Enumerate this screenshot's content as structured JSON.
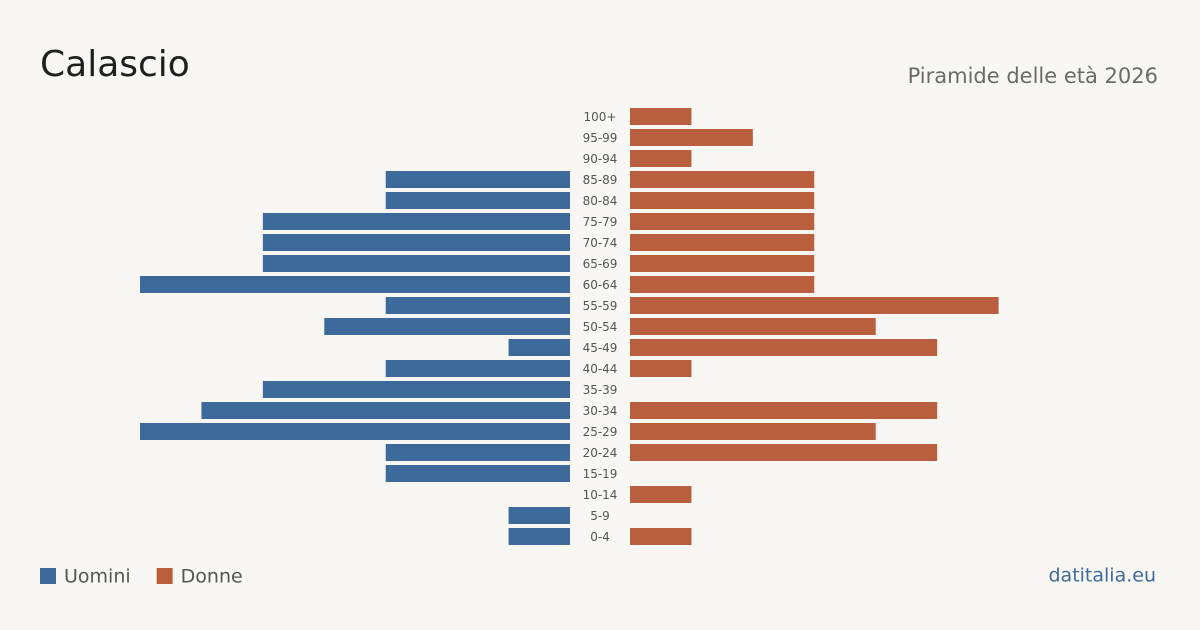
{
  "chart_data": {
    "type": "pyramid",
    "title": "Calascio",
    "subtitle": "Piramide delle età 2026",
    "source": "datitalia.eu",
    "categories": [
      "100+",
      "95-99",
      "90-94",
      "85-89",
      "80-84",
      "75-79",
      "70-74",
      "65-69",
      "60-64",
      "55-59",
      "50-54",
      "45-49",
      "40-44",
      "35-39",
      "30-34",
      "25-29",
      "20-24",
      "15-19",
      "10-14",
      "5-9",
      "0-4"
    ],
    "series": [
      {
        "name": "Uomini",
        "color": "#3d6a9b",
        "values": [
          0,
          0,
          0,
          3,
          3,
          5,
          5,
          5,
          7,
          3,
          4,
          1,
          3,
          5,
          6,
          7,
          3,
          3,
          0,
          1,
          1
        ]
      },
      {
        "name": "Donne",
        "color": "#b95f3e",
        "values": [
          1,
          2,
          1,
          3,
          3,
          3,
          3,
          3,
          3,
          6,
          4,
          5,
          1,
          0,
          5,
          4,
          5,
          0,
          1,
          0,
          1
        ]
      }
    ]
  }
}
